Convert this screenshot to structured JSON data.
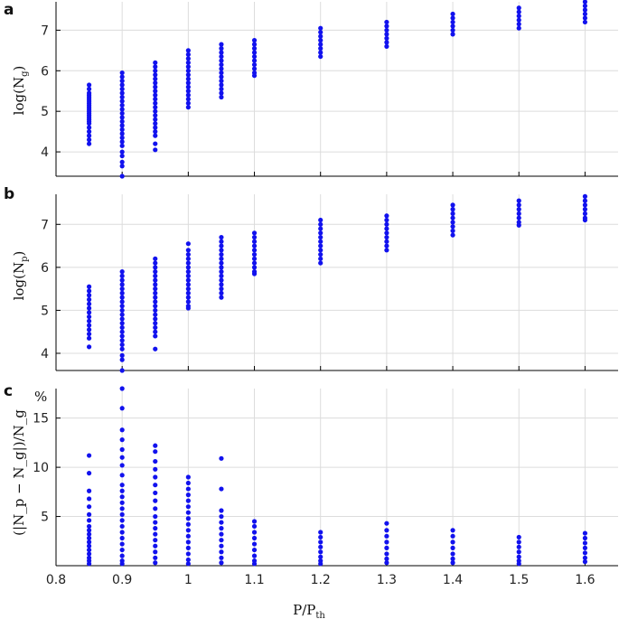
{
  "colors": {
    "points": "#1212ee",
    "grid": "#dcdcdc",
    "axis": "#000000"
  },
  "chart_data": [
    {
      "panel": "a",
      "type": "scatter",
      "ylabel_base": "log(N",
      "ylabel_sub": "g",
      "ylabel_end": ")",
      "xlim": [
        0.8,
        1.65
      ],
      "ylim": [
        3.4,
        7.7
      ],
      "yticks": [
        4,
        5,
        6,
        7
      ],
      "ytick_labels": [
        "4",
        "5",
        "6",
        "7"
      ],
      "grid": true,
      "series": [
        {
          "x": 0.85,
          "y": [
            5.65,
            5.55,
            5.45,
            5.4,
            5.35,
            5.3,
            5.25,
            5.2,
            5.15,
            5.1,
            5.05,
            5.0,
            4.95,
            4.9,
            4.85,
            4.8,
            4.75,
            4.7,
            4.6,
            4.5,
            4.4,
            4.3,
            4.2
          ]
        },
        {
          "x": 0.9,
          "y": [
            5.95,
            5.85,
            5.75,
            5.65,
            5.55,
            5.45,
            5.35,
            5.25,
            5.15,
            5.05,
            4.95,
            4.85,
            4.75,
            4.65,
            4.55,
            4.45,
            4.35,
            4.25,
            4.15,
            4.0,
            3.9,
            3.75,
            3.65,
            3.4
          ]
        },
        {
          "x": 0.95,
          "y": [
            6.2,
            6.1,
            6.0,
            5.9,
            5.8,
            5.7,
            5.6,
            5.5,
            5.4,
            5.3,
            5.2,
            5.1,
            5.0,
            4.9,
            4.8,
            4.7,
            4.6,
            4.5,
            4.4,
            4.2,
            4.05
          ]
        },
        {
          "x": 1.0,
          "y": [
            6.5,
            6.4,
            6.3,
            6.2,
            6.1,
            6.0,
            5.9,
            5.8,
            5.7,
            5.6,
            5.5,
            5.4,
            5.3,
            5.2,
            5.1
          ]
        },
        {
          "x": 1.05,
          "y": [
            6.65,
            6.55,
            6.45,
            6.35,
            6.25,
            6.15,
            6.05,
            5.95,
            5.85,
            5.75,
            5.65,
            5.55,
            5.45,
            5.35
          ]
        },
        {
          "x": 1.1,
          "y": [
            6.75,
            6.65,
            6.55,
            6.45,
            6.35,
            6.25,
            6.15,
            6.05,
            5.95,
            5.88
          ]
        },
        {
          "x": 1.2,
          "y": [
            7.05,
            6.95,
            6.85,
            6.75,
            6.65,
            6.55,
            6.45,
            6.35
          ]
        },
        {
          "x": 1.3,
          "y": [
            7.2,
            7.1,
            7.0,
            6.9,
            6.8,
            6.7,
            6.6
          ]
        },
        {
          "x": 1.4,
          "y": [
            7.4,
            7.3,
            7.2,
            7.1,
            7.0,
            6.9
          ]
        },
        {
          "x": 1.5,
          "y": [
            7.55,
            7.45,
            7.35,
            7.25,
            7.15,
            7.05
          ]
        },
        {
          "x": 1.6,
          "y": [
            7.7,
            7.6,
            7.5,
            7.4,
            7.3,
            7.2
          ]
        }
      ]
    },
    {
      "panel": "b",
      "type": "scatter",
      "ylabel_base": "log(N",
      "ylabel_sub": "p",
      "ylabel_end": ")",
      "xlim": [
        0.8,
        1.65
      ],
      "ylim": [
        3.6,
        7.7
      ],
      "yticks": [
        4,
        5,
        6,
        7
      ],
      "ytick_labels": [
        "4",
        "5",
        "6",
        "7"
      ],
      "grid": true,
      "series": [
        {
          "x": 0.85,
          "y": [
            5.55,
            5.45,
            5.35,
            5.25,
            5.15,
            5.05,
            4.95,
            4.85,
            4.75,
            4.65,
            4.55,
            4.45,
            4.35,
            4.15
          ]
        },
        {
          "x": 0.9,
          "y": [
            5.9,
            5.8,
            5.7,
            5.6,
            5.5,
            5.4,
            5.3,
            5.2,
            5.1,
            5.0,
            4.9,
            4.8,
            4.7,
            4.6,
            4.5,
            4.4,
            4.3,
            4.2,
            4.1,
            3.95,
            3.85,
            3.6
          ]
        },
        {
          "x": 0.95,
          "y": [
            6.2,
            6.1,
            6.0,
            5.9,
            5.8,
            5.7,
            5.6,
            5.5,
            5.4,
            5.3,
            5.2,
            5.1,
            5.0,
            4.9,
            4.8,
            4.7,
            4.6,
            4.5,
            4.4,
            4.1
          ]
        },
        {
          "x": 1.0,
          "y": [
            6.55,
            6.4,
            6.3,
            6.2,
            6.1,
            6.0,
            5.9,
            5.8,
            5.7,
            5.6,
            5.5,
            5.4,
            5.3,
            5.2,
            5.1,
            5.05
          ]
        },
        {
          "x": 1.05,
          "y": [
            6.7,
            6.6,
            6.5,
            6.4,
            6.3,
            6.2,
            6.1,
            6.0,
            5.9,
            5.8,
            5.7,
            5.6,
            5.5,
            5.4,
            5.3
          ]
        },
        {
          "x": 1.1,
          "y": [
            6.8,
            6.7,
            6.6,
            6.5,
            6.4,
            6.3,
            6.2,
            6.1,
            6.0,
            5.9,
            5.85
          ]
        },
        {
          "x": 1.2,
          "y": [
            7.1,
            7.0,
            6.9,
            6.8,
            6.7,
            6.6,
            6.5,
            6.4,
            6.3,
            6.2,
            6.1
          ]
        },
        {
          "x": 1.3,
          "y": [
            7.2,
            7.1,
            7.0,
            6.9,
            6.8,
            6.7,
            6.6,
            6.5,
            6.4
          ]
        },
        {
          "x": 1.4,
          "y": [
            7.45,
            7.35,
            7.25,
            7.15,
            7.05,
            6.95,
            6.85,
            6.75
          ]
        },
        {
          "x": 1.5,
          "y": [
            7.55,
            7.45,
            7.35,
            7.25,
            7.15,
            7.05,
            6.98
          ]
        },
        {
          "x": 1.6,
          "y": [
            7.65,
            7.55,
            7.45,
            7.35,
            7.25,
            7.15,
            7.1
          ]
        }
      ]
    },
    {
      "panel": "c",
      "type": "scatter",
      "ylabel_text": "(|N_p − N_g|)/N_g",
      "unit": "%",
      "xlabel_base": "P/P",
      "xlabel_sub": "th",
      "xlim": [
        0.8,
        1.65
      ],
      "ylim": [
        0,
        18
      ],
      "yticks": [
        5,
        10,
        15
      ],
      "ytick_labels": [
        "5",
        "10",
        "15"
      ],
      "xticks": [
        0.8,
        0.9,
        1.0,
        1.1,
        1.2,
        1.3,
        1.4,
        1.5,
        1.6
      ],
      "xtick_labels": [
        "0.8",
        "0.9",
        "1",
        "1.1",
        "1.2",
        "1.3",
        "1.4",
        "1.5",
        "1.6"
      ],
      "grid": true,
      "series": [
        {
          "x": 0.85,
          "y": [
            11.2,
            9.4,
            7.6,
            6.8,
            6.0,
            5.2,
            4.6,
            4.0,
            3.6,
            3.2,
            2.8,
            2.4,
            2.0,
            1.6,
            1.2,
            0.8,
            0.5,
            0.2
          ]
        },
        {
          "x": 0.9,
          "y": [
            18.0,
            16.0,
            13.8,
            12.8,
            11.8,
            11.0,
            10.2,
            9.2,
            8.2,
            7.6,
            7.0,
            6.4,
            5.8,
            5.2,
            4.6,
            4.0,
            3.4,
            2.8,
            2.2,
            1.6,
            1.0,
            0.5,
            0.2
          ]
        },
        {
          "x": 0.95,
          "y": [
            12.2,
            11.6,
            10.6,
            9.8,
            9.0,
            8.2,
            7.4,
            6.6,
            5.8,
            5.0,
            4.4,
            3.8,
            3.2,
            2.6,
            2.0,
            1.4,
            0.8,
            0.3
          ]
        },
        {
          "x": 1.0,
          "y": [
            9.0,
            8.4,
            7.8,
            7.2,
            6.6,
            6.0,
            5.4,
            4.8,
            4.2,
            3.6,
            3.0,
            2.4,
            1.8,
            1.2,
            0.6,
            0.2
          ]
        },
        {
          "x": 1.05,
          "y": [
            10.9,
            7.8,
            5.6,
            5.0,
            4.4,
            3.8,
            3.2,
            2.6,
            2.0,
            1.4,
            0.8,
            0.3
          ]
        },
        {
          "x": 1.1,
          "y": [
            4.5,
            4.0,
            3.4,
            2.8,
            2.2,
            1.6,
            1.0,
            0.5,
            0.2
          ]
        },
        {
          "x": 1.2,
          "y": [
            3.4,
            2.9,
            2.4,
            1.9,
            1.4,
            0.9,
            0.5,
            0.2
          ]
        },
        {
          "x": 1.3,
          "y": [
            4.3,
            3.6,
            3.0,
            2.4,
            1.8,
            1.2,
            0.7,
            0.3
          ]
        },
        {
          "x": 1.4,
          "y": [
            3.6,
            3.0,
            2.4,
            1.8,
            1.2,
            0.7,
            0.3
          ]
        },
        {
          "x": 1.5,
          "y": [
            2.9,
            2.4,
            1.9,
            1.4,
            0.9,
            0.5,
            0.2
          ]
        },
        {
          "x": 1.6,
          "y": [
            3.3,
            2.8,
            2.3,
            1.8,
            1.3,
            0.8,
            0.4
          ]
        }
      ]
    }
  ]
}
